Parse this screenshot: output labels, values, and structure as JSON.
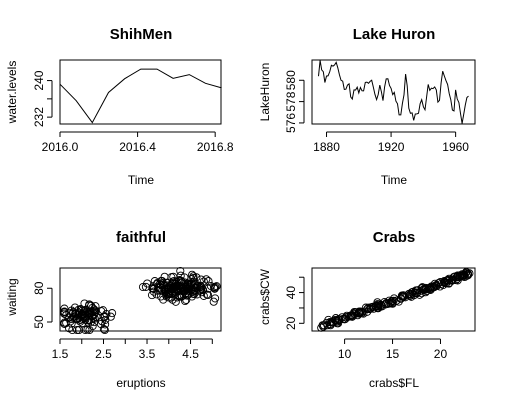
{
  "chart_data": [
    {
      "type": "line",
      "title": "ShihMen",
      "xlabel": "Time",
      "ylabel": "water.levels",
      "xlim": [
        2016.0,
        2016.83
      ],
      "ylim": [
        230.5,
        244.5
      ],
      "xticks": [
        2016.0,
        2016.4,
        2016.8
      ],
      "xtick_labels": [
        "2016.0",
        "2016.4",
        "2016.8"
      ],
      "yticks": [
        232,
        236,
        240
      ],
      "ytick_labels": [
        "232",
        "",
        "240"
      ],
      "x": [
        2016.0,
        2016.0833,
        2016.1667,
        2016.25,
        2016.3333,
        2016.4167,
        2016.5,
        2016.5833,
        2016.6667,
        2016.75,
        2016.8333
      ],
      "values": [
        239.2,
        235.6,
        230.8,
        237.4,
        240.4,
        242.5,
        242.5,
        240.5,
        241.3,
        239.4,
        238.4
      ],
      "box": true
    },
    {
      "type": "line",
      "title": "Lake Huron",
      "xlabel": "Time",
      "ylabel": "LakeHuron",
      "xlim": [
        1871,
        1972
      ],
      "ylim": [
        575.9,
        581.9
      ],
      "xticks": [
        1880,
        1920,
        1960
      ],
      "xtick_labels": [
        "1880",
        "1920",
        "1960"
      ],
      "yticks": [
        576,
        578,
        580
      ],
      "ytick_labels": [
        "576",
        "578",
        "580"
      ],
      "x_start": 1875,
      "values": [
        580.38,
        581.86,
        580.97,
        580.8,
        579.79,
        580.39,
        580.42,
        580.82,
        581.4,
        581.32,
        581.44,
        581.68,
        581.17,
        580.53,
        580.01,
        579.91,
        579.14,
        579.16,
        579.55,
        579.67,
        578.44,
        578.24,
        579.1,
        579.09,
        579.35,
        578.82,
        579.32,
        579.01,
        579.0,
        579.8,
        579.83,
        579.72,
        579.89,
        580.01,
        579.37,
        578.69,
        578.19,
        578.67,
        579.55,
        578.92,
        578.09,
        579.37,
        580.13,
        580.14,
        579.51,
        579.24,
        578.66,
        578.86,
        578.05,
        577.79,
        576.75,
        576.75,
        577.82,
        578.64,
        580.58,
        579.48,
        577.38,
        576.9,
        576.94,
        576.24,
        576.84,
        576.85,
        576.9,
        577.79,
        578.18,
        577.51,
        577.23,
        578.42,
        579.61,
        579.05,
        579.26,
        579.22,
        579.38,
        579.1,
        577.95,
        578.12,
        579.75,
        580.85,
        580.41,
        579.96,
        579.61,
        578.76,
        578.18,
        577.21,
        577.13,
        579.1,
        578.25,
        577.91,
        576.89,
        575.96,
        576.8,
        577.68,
        578.38,
        578.52
      ],
      "box": true
    },
    {
      "type": "scatter",
      "title": "faithful",
      "xlabel": "eruptions",
      "ylabel": "waiting",
      "xlim": [
        1.5,
        5.2
      ],
      "ylim": [
        42,
        98
      ],
      "xticks": [
        1.5,
        2.5,
        3.5,
        4.5
      ],
      "xtick_labels": [
        "1.5",
        "2.5",
        "3.5",
        "4.5"
      ],
      "xticks_minor": [
        2.0,
        3.0,
        4.0,
        5.0
      ],
      "yticks": [
        50,
        80
      ],
      "ytick_labels": [
        "50",
        "80"
      ],
      "clusters": [
        {
          "n": 97,
          "x_mean": 2.04,
          "x_sd": 0.27,
          "y_mean": 54.5,
          "y_sd": 5.9,
          "x_min": 1.6,
          "x_max": 3.0
        },
        {
          "n": 175,
          "x_mean": 4.29,
          "x_sd": 0.41,
          "y_mean": 80.0,
          "y_sd": 5.6,
          "x_min": 3.0,
          "x_max": 5.1
        }
      ],
      "box": true
    },
    {
      "type": "scatter",
      "title": "Crabs",
      "xlabel": "crabs$FL",
      "ylabel": "crabs$CW",
      "xlim": [
        6.6,
        23.6
      ],
      "ylim": [
        15,
        56
      ],
      "xticks": [
        10,
        15,
        20
      ],
      "xtick_labels": [
        "10",
        "15",
        "20"
      ],
      "yticks": [
        20,
        30,
        40,
        50
      ],
      "ytick_labels": [
        "20",
        "",
        "40",
        ""
      ],
      "relation": {
        "n": 200,
        "x_min": 7.2,
        "x_max": 23.1,
        "slope": 2.22,
        "intercept": 1.4,
        "noise_sd": 1.0
      },
      "box": true
    }
  ]
}
